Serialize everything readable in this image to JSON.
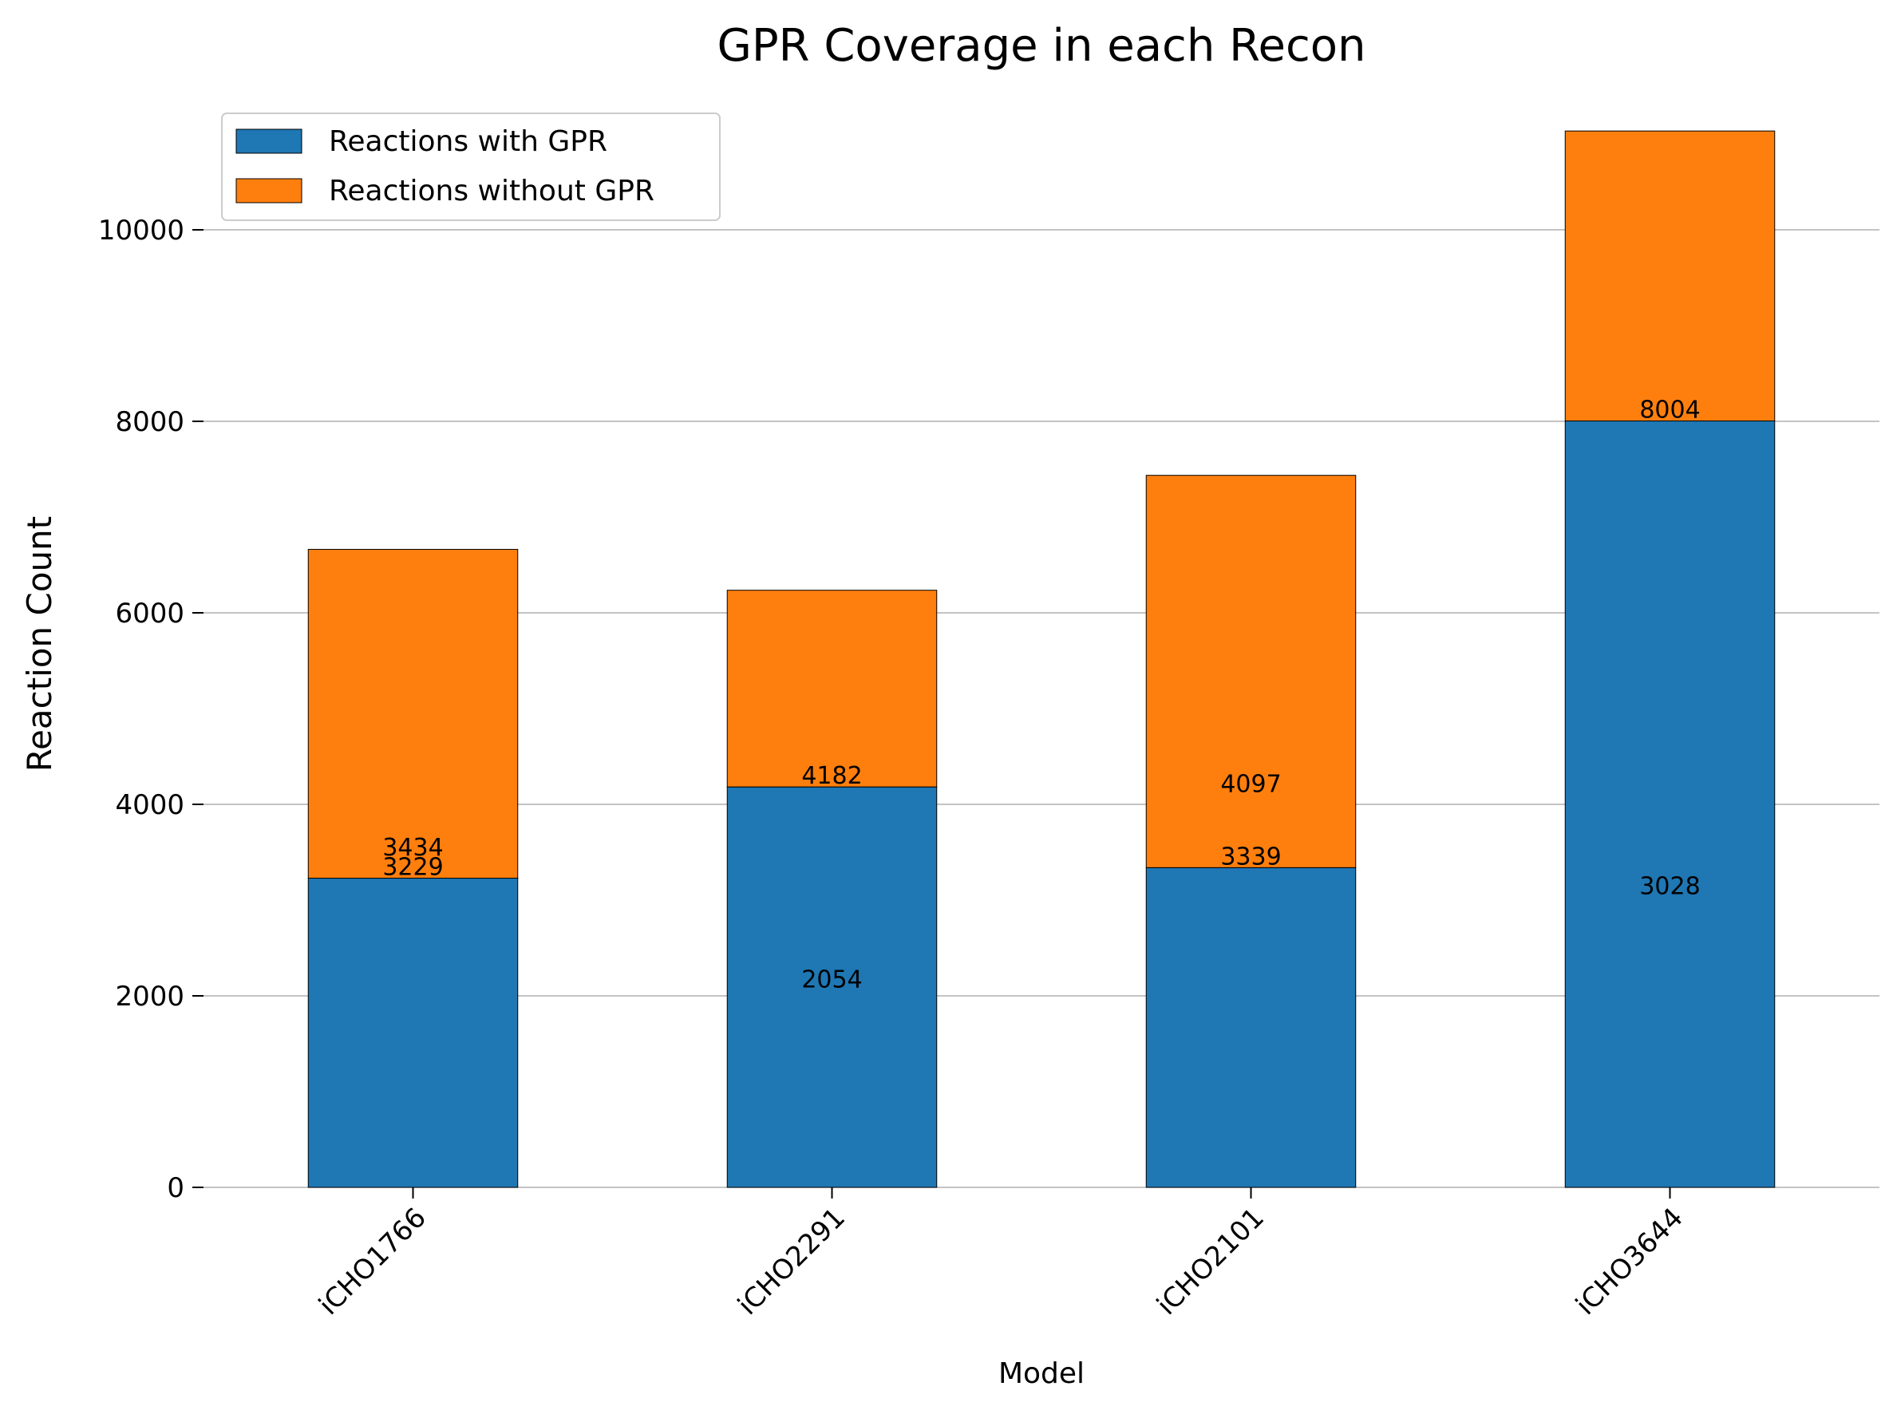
{
  "chart_data": {
    "type": "bar",
    "stacked": true,
    "title": "GPR Coverage in each Recon",
    "xlabel": "Model",
    "ylabel": "Reaction Count",
    "categories": [
      "iCHO1766",
      "iCHO2291",
      "iCHO2101",
      "iCHO3644"
    ],
    "series": [
      {
        "name": "Reactions with GPR",
        "values": [
          3229,
          4182,
          3339,
          8004
        ],
        "color": "#1f77b4"
      },
      {
        "name": "Reactions without GPR",
        "values": [
          3434,
          2054,
          4097,
          3028
        ],
        "color": "#ff7f0e"
      }
    ],
    "annotations": [
      {
        "category": "iCHO1766",
        "text": "3229",
        "y": 3229
      },
      {
        "category": "iCHO1766",
        "text": "3434",
        "y": 3434
      },
      {
        "category": "iCHO2291",
        "text": "4182",
        "y": 4182
      },
      {
        "category": "iCHO2291",
        "text": "2054",
        "y": 2054
      },
      {
        "category": "iCHO2101",
        "text": "3339",
        "y": 3339
      },
      {
        "category": "iCHO2101",
        "text": "4097",
        "y": 4097
      },
      {
        "category": "iCHO3644",
        "text": "8004",
        "y": 8004
      },
      {
        "category": "iCHO3644",
        "text": "3028",
        "y": 3028
      }
    ],
    "yticks": [
      0,
      2000,
      4000,
      6000,
      8000,
      10000
    ],
    "ylim": [
      0,
      11400
    ],
    "grid": "y",
    "legend": "top-left"
  }
}
